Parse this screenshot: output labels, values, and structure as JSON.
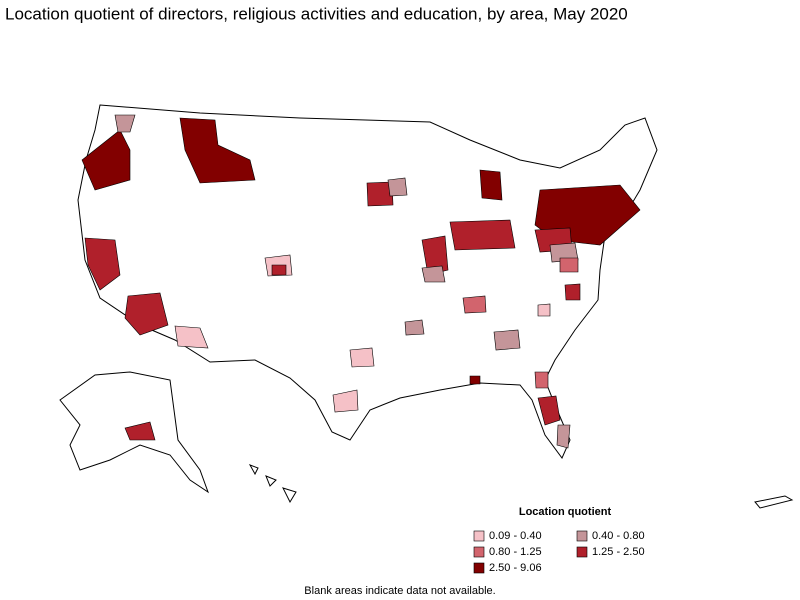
{
  "title": "Location quotient of directors, religious activities and education, by area, May 2020",
  "legend": {
    "title": "Location quotient",
    "items": [
      {
        "label": "0.09 - 0.40",
        "color": "#f5c1c7"
      },
      {
        "label": "0.40 - 0.80",
        "color": "#c49599"
      },
      {
        "label": "0.80 - 1.25",
        "color": "#d2646d"
      },
      {
        "label": "1.25 - 2.50",
        "color": "#b0202b"
      },
      {
        "label": "2.50 - 9.06",
        "color": "#820000"
      }
    ]
  },
  "footnote": "Blank areas indicate data not available."
}
